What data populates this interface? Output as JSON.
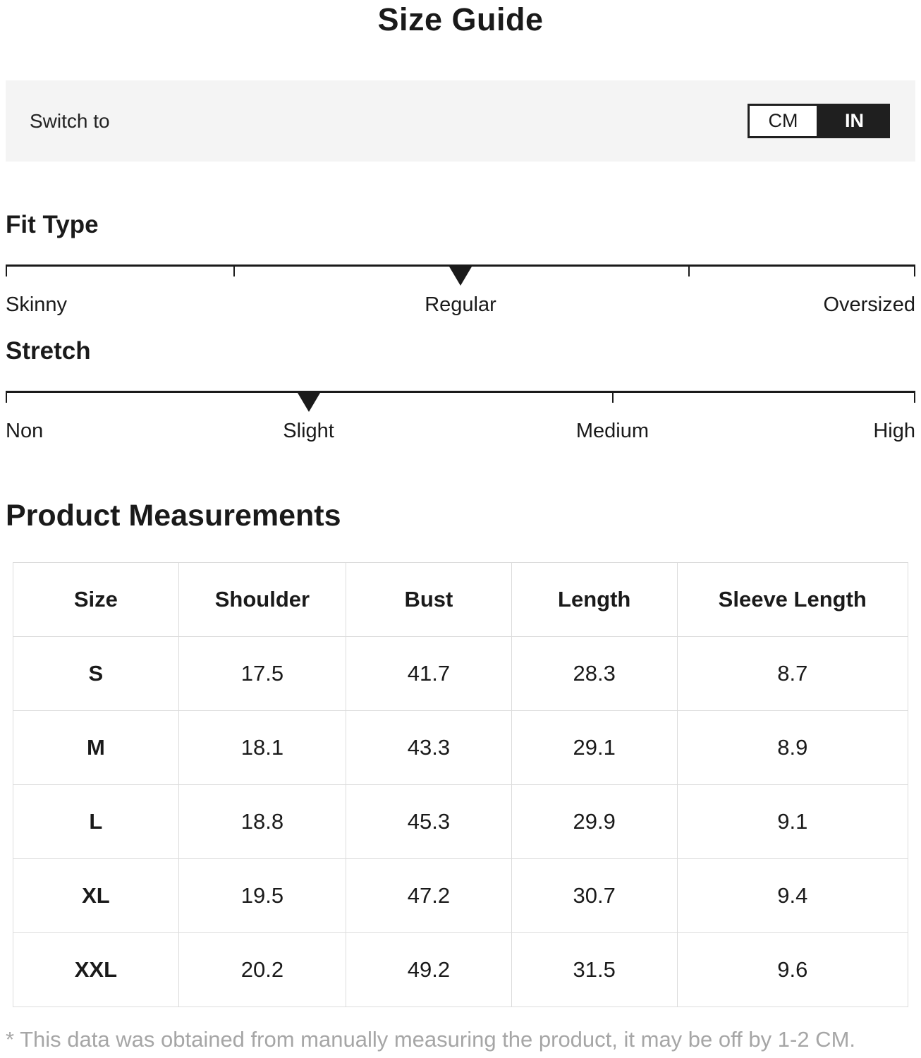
{
  "page_title": "Size Guide",
  "unit_switch": {
    "label": "Switch to",
    "options": [
      {
        "label": "CM",
        "selected": false
      },
      {
        "label": "IN",
        "selected": true
      }
    ]
  },
  "sliders": [
    {
      "title": "Fit Type",
      "selected": "Regular",
      "marker_pct": 50,
      "ticks_pct": [
        0,
        25,
        75,
        100
      ],
      "labels": [
        {
          "text": "Skinny",
          "pct": 0,
          "align": "left"
        },
        {
          "text": "Regular",
          "pct": 50,
          "align": "center"
        },
        {
          "text": "Oversized",
          "pct": 100,
          "align": "right"
        }
      ]
    },
    {
      "title": "Stretch",
      "selected": "Slight",
      "marker_pct": 33.3,
      "ticks_pct": [
        0,
        66.7,
        100
      ],
      "labels": [
        {
          "text": "Non",
          "pct": 0,
          "align": "left"
        },
        {
          "text": "Slight",
          "pct": 33.3,
          "align": "center"
        },
        {
          "text": "Medium",
          "pct": 66.7,
          "align": "center"
        },
        {
          "text": "High",
          "pct": 100,
          "align": "right"
        }
      ]
    }
  ],
  "measurements": {
    "title": "Product Measurements",
    "columns": [
      "Size",
      "Shoulder",
      "Bust",
      "Length",
      "Sleeve Length"
    ],
    "rows": [
      {
        "size": "S",
        "values": [
          "17.5",
          "41.7",
          "28.3",
          "8.7"
        ]
      },
      {
        "size": "M",
        "values": [
          "18.1",
          "43.3",
          "29.1",
          "8.9"
        ]
      },
      {
        "size": "L",
        "values": [
          "18.8",
          "45.3",
          "29.9",
          "9.1"
        ]
      },
      {
        "size": "XL",
        "values": [
          "19.5",
          "47.2",
          "30.7",
          "9.4"
        ]
      },
      {
        "size": "XXL",
        "values": [
          "20.2",
          "49.2",
          "31.5",
          "9.6"
        ]
      }
    ]
  },
  "footnote": "* This data was obtained from manually measuring the product, it may be off by 1-2 CM.",
  "colors": {
    "text": "#1a1a1a",
    "bar_background": "#f4f4f4",
    "toggle_active_bg": "#1f1f1f",
    "toggle_active_text": "#ffffff",
    "table_border": "#dcdcdc",
    "footnote_text": "#a6a6a6"
  }
}
